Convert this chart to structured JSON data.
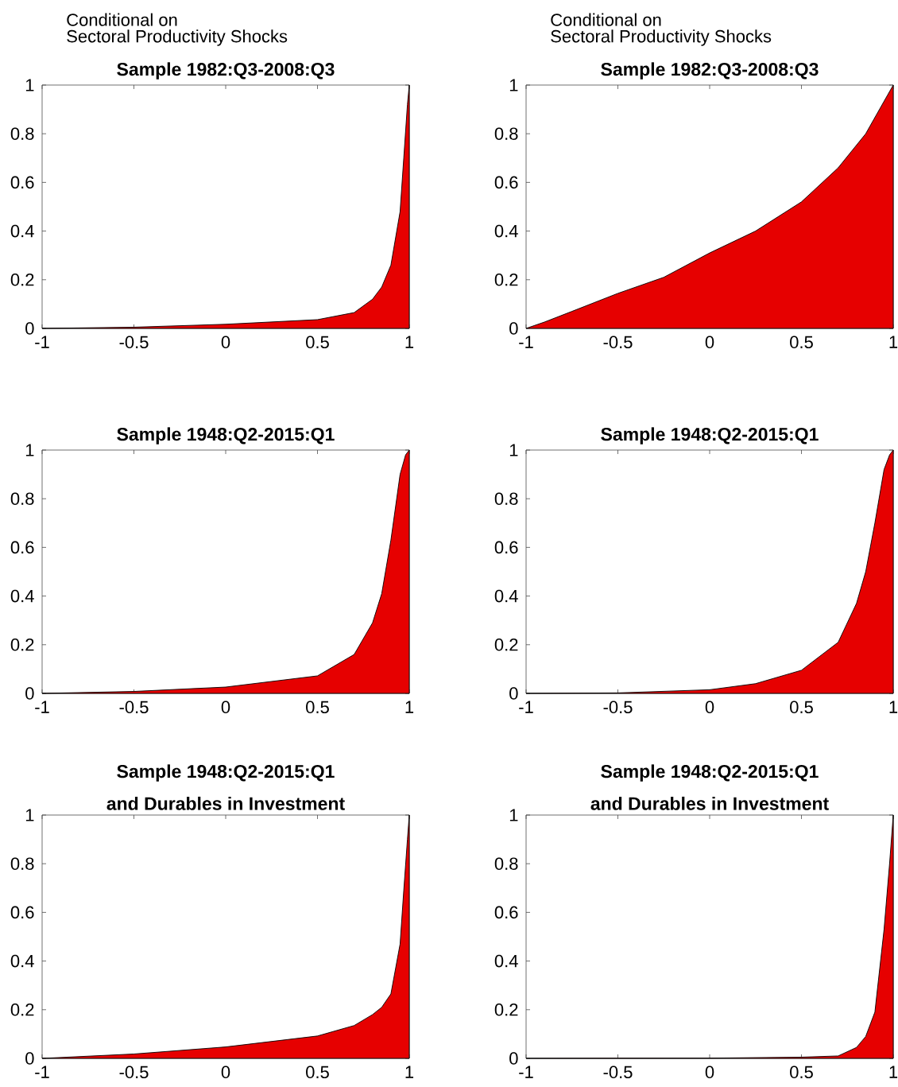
{
  "chart_data": [
    {
      "type": "area",
      "annotations": [
        "Conditional on",
        "Sectoral Productivity Shocks"
      ],
      "title": "Sample 1982:Q3-2008:Q3",
      "color": "#e60000",
      "x": [
        -1,
        -0.5,
        0,
        0.5,
        0.7,
        0.8,
        0.85,
        0.9,
        0.95,
        0.97,
        0.99,
        1
      ],
      "values": [
        0,
        0.005,
        0.017,
        0.036,
        0.065,
        0.12,
        0.17,
        0.26,
        0.48,
        0.7,
        0.92,
        1
      ],
      "xlim": [
        -1,
        1
      ],
      "ylim": [
        0,
        1
      ],
      "xticks": [
        -1,
        -0.5,
        0,
        0.5,
        1
      ],
      "yticks": [
        0,
        0.2,
        0.4,
        0.6,
        0.8,
        1
      ]
    },
    {
      "type": "area",
      "annotations": [
        "Conditional on",
        "Sectoral Productivity Shocks"
      ],
      "title": "Sample 1982:Q3-2008:Q3",
      "color": "#e60000",
      "x": [
        -1,
        -0.9,
        -0.75,
        -0.5,
        -0.25,
        0,
        0.25,
        0.5,
        0.7,
        0.85,
        1
      ],
      "values": [
        0,
        0.026,
        0.07,
        0.144,
        0.21,
        0.31,
        0.4,
        0.52,
        0.66,
        0.8,
        1
      ],
      "xlim": [
        -1,
        1
      ],
      "ylim": [
        0,
        1
      ],
      "xticks": [
        -1,
        -0.5,
        0,
        0.5,
        1
      ],
      "yticks": [
        0,
        0.2,
        0.4,
        0.6,
        0.8,
        1
      ]
    },
    {
      "type": "area",
      "title": "Sample 1948:Q2-2015:Q1",
      "color": "#e60000",
      "x": [
        -1,
        -0.5,
        0,
        0.5,
        0.7,
        0.8,
        0.85,
        0.9,
        0.95,
        0.98,
        1
      ],
      "values": [
        0,
        0.008,
        0.026,
        0.072,
        0.16,
        0.29,
        0.41,
        0.63,
        0.9,
        0.98,
        1
      ],
      "xlim": [
        -1,
        1
      ],
      "ylim": [
        0,
        1
      ],
      "xticks": [
        -1,
        -0.5,
        0,
        0.5,
        1
      ],
      "yticks": [
        0,
        0.2,
        0.4,
        0.6,
        0.8,
        1
      ]
    },
    {
      "type": "area",
      "title": "Sample 1948:Q2-2015:Q1",
      "color": "#e60000",
      "x": [
        -1,
        -0.5,
        0,
        0.25,
        0.5,
        0.7,
        0.8,
        0.85,
        0.9,
        0.95,
        0.98,
        1
      ],
      "values": [
        0,
        0.002,
        0.015,
        0.04,
        0.095,
        0.21,
        0.37,
        0.5,
        0.7,
        0.92,
        0.98,
        1
      ],
      "xlim": [
        -1,
        1
      ],
      "ylim": [
        0,
        1
      ],
      "xticks": [
        -1,
        -0.5,
        0,
        0.5,
        1
      ],
      "yticks": [
        0,
        0.2,
        0.4,
        0.6,
        0.8,
        1
      ]
    },
    {
      "type": "area",
      "title": "Sample 1948:Q2-2015:Q1",
      "subtitle": "and Durables in Investment",
      "color": "#e60000",
      "x": [
        -1,
        -0.5,
        0,
        0.5,
        0.7,
        0.8,
        0.85,
        0.9,
        0.95,
        0.97,
        0.99,
        1
      ],
      "values": [
        0,
        0.018,
        0.047,
        0.092,
        0.135,
        0.18,
        0.21,
        0.265,
        0.47,
        0.69,
        0.9,
        1
      ],
      "xlim": [
        -1,
        1
      ],
      "ylim": [
        0,
        1
      ],
      "xticks": [
        -1,
        -0.5,
        0,
        0.5,
        1
      ],
      "yticks": [
        0,
        0.2,
        0.4,
        0.6,
        0.8,
        1
      ]
    },
    {
      "type": "area",
      "title": "Sample 1948:Q2-2015:Q1",
      "subtitle": "and Durables in Investment",
      "color": "#e60000",
      "x": [
        -1,
        0,
        0.5,
        0.7,
        0.8,
        0.85,
        0.9,
        0.95,
        0.98,
        1
      ],
      "values": [
        0,
        0.001,
        0.005,
        0.01,
        0.045,
        0.09,
        0.19,
        0.53,
        0.8,
        1
      ],
      "xlim": [
        -1,
        1
      ],
      "ylim": [
        0,
        1
      ],
      "xticks": [
        -1,
        -0.5,
        0,
        0.5,
        1
      ],
      "yticks": [
        0,
        0.2,
        0.4,
        0.6,
        0.8,
        1
      ]
    }
  ]
}
